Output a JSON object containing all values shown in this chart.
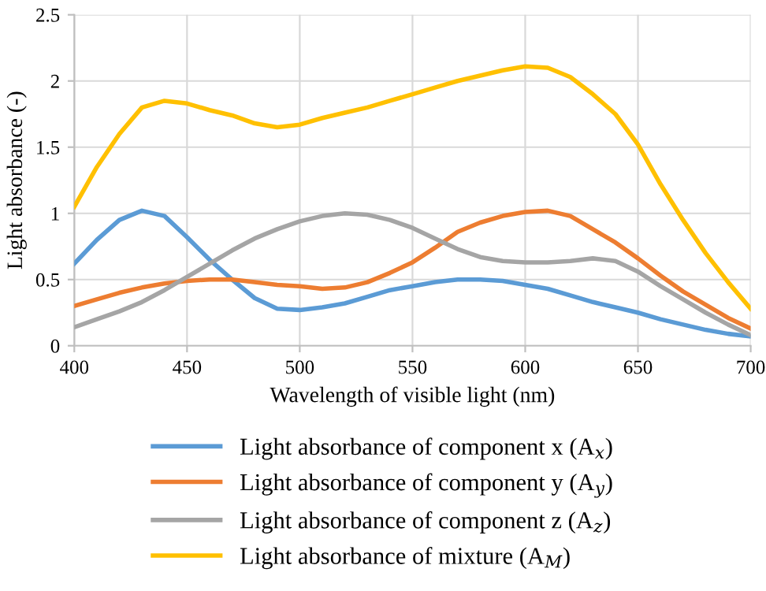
{
  "chart_data": {
    "type": "line",
    "xlabel": "Wavelength of visible light (nm)",
    "ylabel": "Light absorbance (-)",
    "x": [
      400,
      410,
      420,
      430,
      440,
      450,
      460,
      470,
      480,
      490,
      500,
      510,
      520,
      530,
      540,
      550,
      560,
      570,
      580,
      590,
      600,
      610,
      620,
      630,
      640,
      650,
      660,
      670,
      680,
      690,
      700
    ],
    "series": [
      {
        "name": "Light absorbance of component x (A$_{x}$)",
        "color": "#5b9bd5",
        "values": [
          0.62,
          0.8,
          0.95,
          1.02,
          0.98,
          0.82,
          0.65,
          0.5,
          0.36,
          0.28,
          0.27,
          0.29,
          0.32,
          0.37,
          0.42,
          0.45,
          0.48,
          0.5,
          0.5,
          0.49,
          0.46,
          0.43,
          0.38,
          0.33,
          0.29,
          0.25,
          0.2,
          0.16,
          0.12,
          0.09,
          0.07
        ]
      },
      {
        "name": "Light absorbance of component y (A$_{y}$)",
        "color": "#ed7d31",
        "values": [
          0.3,
          0.35,
          0.4,
          0.44,
          0.47,
          0.49,
          0.5,
          0.5,
          0.48,
          0.46,
          0.45,
          0.43,
          0.44,
          0.48,
          0.55,
          0.63,
          0.74,
          0.86,
          0.93,
          0.98,
          1.01,
          1.02,
          0.98,
          0.88,
          0.78,
          0.66,
          0.53,
          0.41,
          0.31,
          0.21,
          0.13
        ]
      },
      {
        "name": "Light absorbance of component z (A$_{z}$)",
        "color": "#a5a5a5",
        "values": [
          0.14,
          0.2,
          0.26,
          0.33,
          0.42,
          0.52,
          0.62,
          0.72,
          0.81,
          0.88,
          0.94,
          0.98,
          1.0,
          0.99,
          0.95,
          0.89,
          0.81,
          0.73,
          0.67,
          0.64,
          0.63,
          0.63,
          0.64,
          0.66,
          0.64,
          0.56,
          0.45,
          0.35,
          0.25,
          0.16,
          0.08
        ]
      },
      {
        "name": "Light absorbance of mixture (A$_{M}$)",
        "color": "#ffc000",
        "values": [
          1.05,
          1.35,
          1.6,
          1.8,
          1.85,
          1.83,
          1.78,
          1.74,
          1.68,
          1.65,
          1.67,
          1.72,
          1.76,
          1.8,
          1.85,
          1.9,
          1.95,
          2.0,
          2.04,
          2.08,
          2.11,
          2.1,
          2.03,
          1.9,
          1.75,
          1.52,
          1.22,
          0.95,
          0.7,
          0.48,
          0.28
        ]
      }
    ],
    "xlim": [
      400,
      700
    ],
    "xticks": [
      400,
      450,
      500,
      550,
      600,
      650,
      700
    ],
    "ylim": [
      0,
      2.5
    ],
    "yticks": [
      0,
      0.5,
      1,
      1.5,
      2,
      2.5
    ],
    "grid": true,
    "legend": "bottom",
    "marker": "none",
    "line_style": "solid"
  }
}
